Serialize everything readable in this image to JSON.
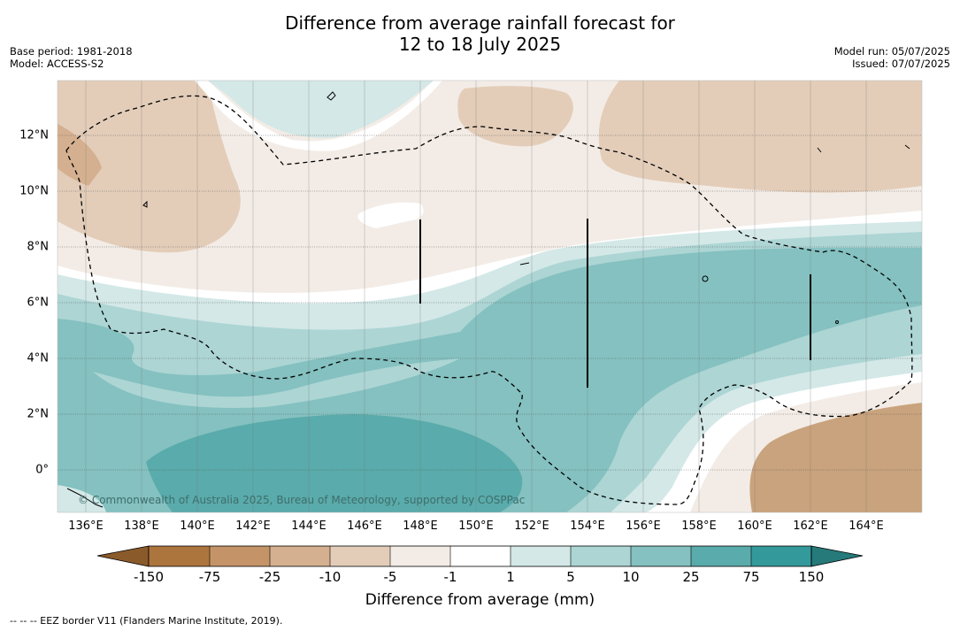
{
  "title_line1": "Difference from average rainfall forecast for",
  "title_line2": "12 to 18 July 2025",
  "base_period": "Base period: 1981-2018",
  "model": "Model: ACCESS-S2",
  "model_run": "Model run: 05/07/2025",
  "issued": "Issued: 07/07/2025",
  "x_ticks": [
    "136°E",
    "138°E",
    "140°E",
    "142°E",
    "144°E",
    "146°E",
    "148°E",
    "150°E",
    "152°E",
    "154°E",
    "156°E",
    "158°E",
    "160°E",
    "162°E",
    "164°E"
  ],
  "y_ticks": [
    "12°N",
    "10°N",
    "8°N",
    "6°N",
    "4°N",
    "2°N",
    "0°"
  ],
  "copyright": "© Commonwealth of Australia 2025, Bureau of Meteorology, supported by COSPPac",
  "colorbar": {
    "tick_labels": [
      "-150",
      "-75",
      "-25",
      "-10",
      "-5",
      "-1",
      "1",
      "5",
      "10",
      "25",
      "75",
      "150"
    ],
    "colors": [
      "#8b5a2b",
      "#ad753e",
      "#c49468",
      "#d4b090",
      "#e3cdb9",
      "#f3ece6",
      "#ffffff",
      "#d3e8e7",
      "#acd5d4",
      "#84c1c0",
      "#5aabab",
      "#34999a",
      "#267a7a"
    ],
    "label": "Difference from average (mm)"
  },
  "footnote": "--  --  -- EEZ border V11 (Flanders Marine Institute, 2019)."
}
